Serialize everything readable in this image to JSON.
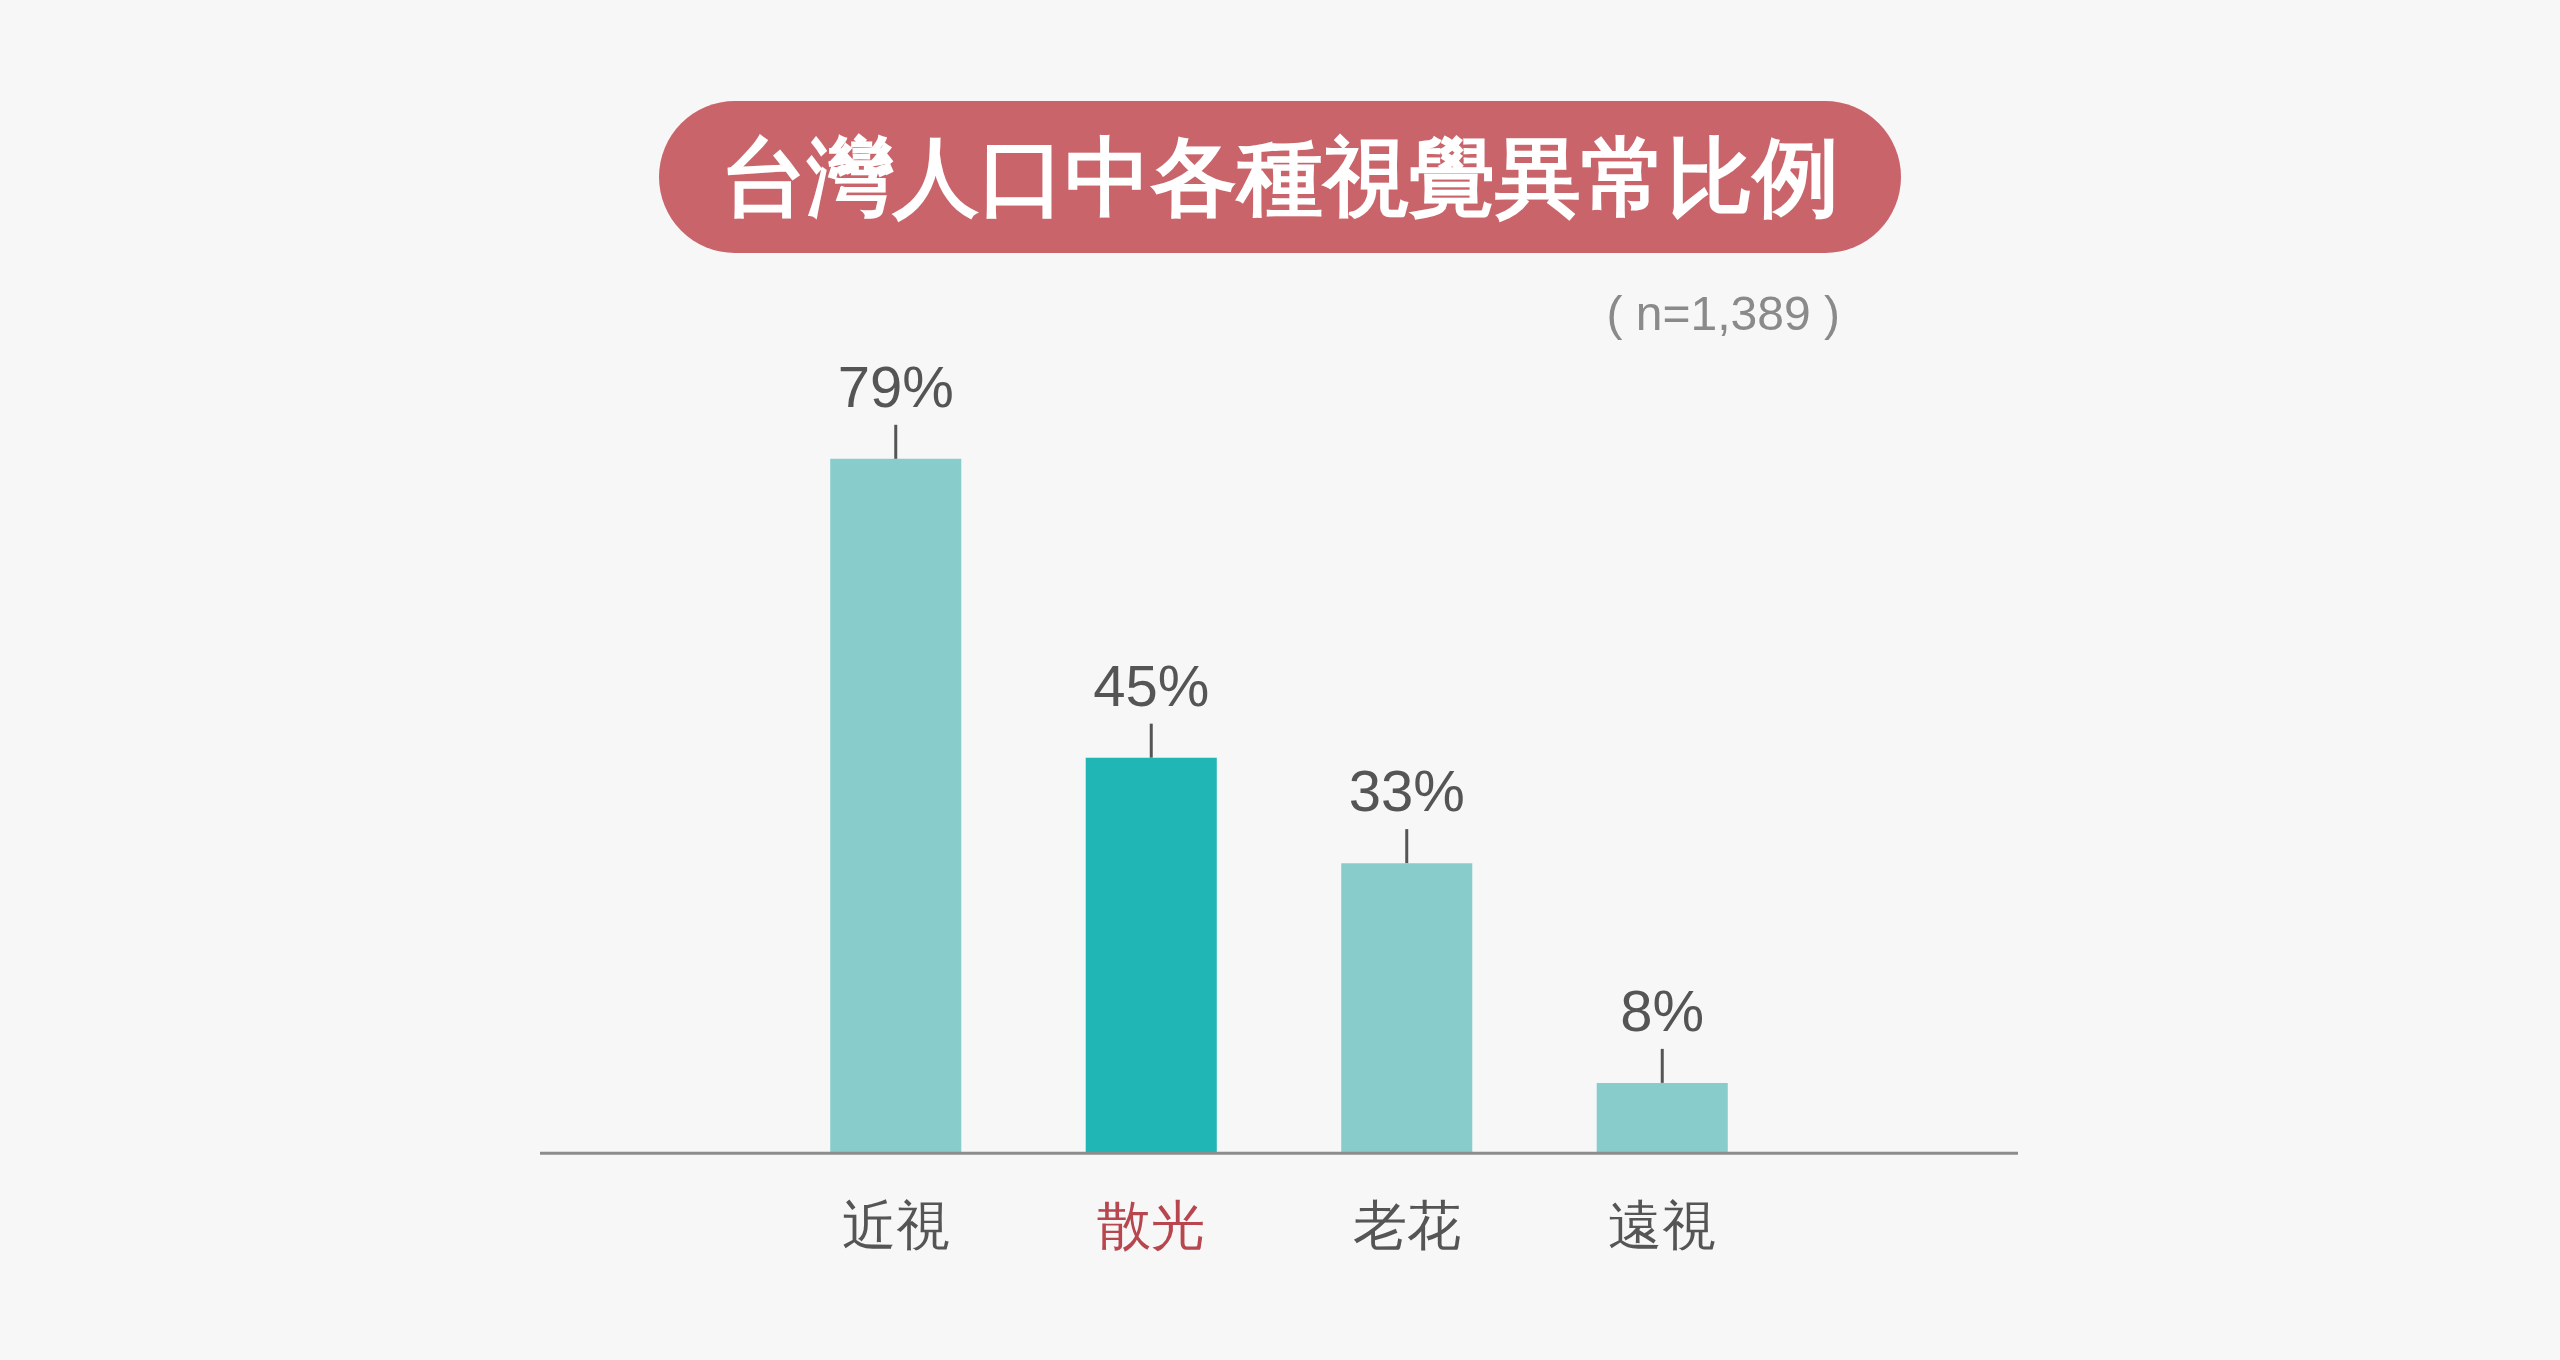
{
  "chart_data": {
    "type": "bar",
    "title": "台灣人口中各種視覺異常比例",
    "subtitle": "( n=1,389 )",
    "categories": [
      "近視",
      "散光",
      "老花",
      "遠視"
    ],
    "values": [
      79,
      45,
      33,
      8
    ],
    "colors": [
      "#88cdcb",
      "#1fb6b5",
      "#88cdcb",
      "#88cdcb"
    ],
    "value_labels": [
      "79%",
      "45%",
      "33%",
      "8%"
    ]
  }
}
